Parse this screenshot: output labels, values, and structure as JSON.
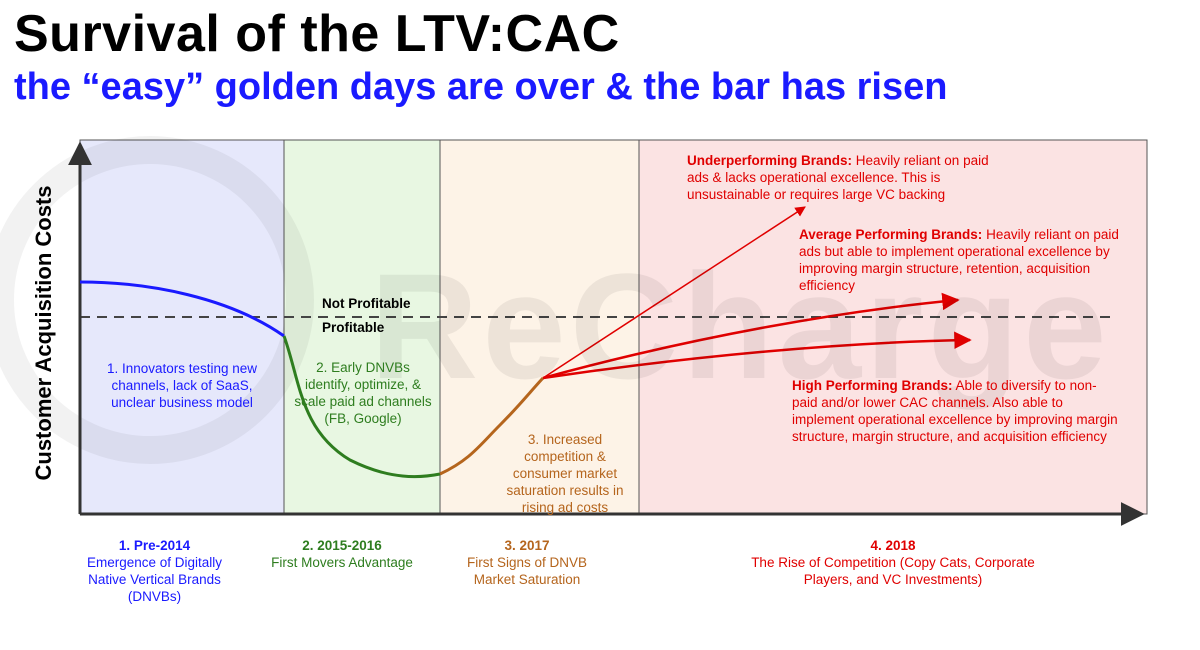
{
  "title": "Survival of the LTV:CAC",
  "subtitle": "the “easy” golden days are over & the bar has risen",
  "y_axis_label": "Customer Acquisition Costs",
  "watermark_text": "ReCharge",
  "threshold": {
    "above_label": "Not Profitable",
    "below_label": "Profitable"
  },
  "regions": [
    {
      "id": "pre-2014",
      "color": "#e6e8fb",
      "period": "1. Pre-2014",
      "period_desc": "Emergence of Digitally Native Vertical Brands (DNVBs)",
      "body": "1. Innovators testing new channels, lack of SaaS, unclear business model",
      "text_color": "#1a1aff"
    },
    {
      "id": "2015-2016",
      "color": "#e8f7e2",
      "period": "2. 2015-2016",
      "period_desc": "First Movers Advantage",
      "body": "2. Early DNVBs identify, optimize, & scale paid ad channels (FB, Google)",
      "text_color": "#2e7d1f"
    },
    {
      "id": "2017",
      "color": "#fdf3e7",
      "period": "3. 2017",
      "period_desc": "First Signs of DNVB Market Saturation",
      "body": "3. Increased competition & consumer market saturation results in rising ad costs",
      "text_color": "#b5651d"
    },
    {
      "id": "2018",
      "color": "#fbe3e3",
      "period": "4. 2018",
      "period_desc": "The Rise of Competition (Copy Cats, Corporate Players, and VC Investments)",
      "body": "",
      "text_color": "#e00000"
    }
  ],
  "annotations": {
    "underperforming": {
      "heading": "Underperforming Brands:",
      "text": " Heavily reliant on paid ads & lacks operational excellence. This is unsustainable or requires large VC backing"
    },
    "average": {
      "heading": "Average Performing Brands:",
      "text": " Heavily reliant on paid ads but able to implement operational excellence by improving margin structure, retention, acquisition efficiency"
    },
    "high": {
      "heading": "High Performing Brands:",
      "text": " Able to diversify to non-paid and/or lower CAC channels. Also able to implement operational excellence by improving margin structure, margin structure, and acquisition efficiency"
    }
  },
  "colors": {
    "blue": "#1a1aff",
    "green": "#2e7d1f",
    "orange": "#b5651d",
    "red": "#e00000",
    "axis": "#333333"
  }
}
